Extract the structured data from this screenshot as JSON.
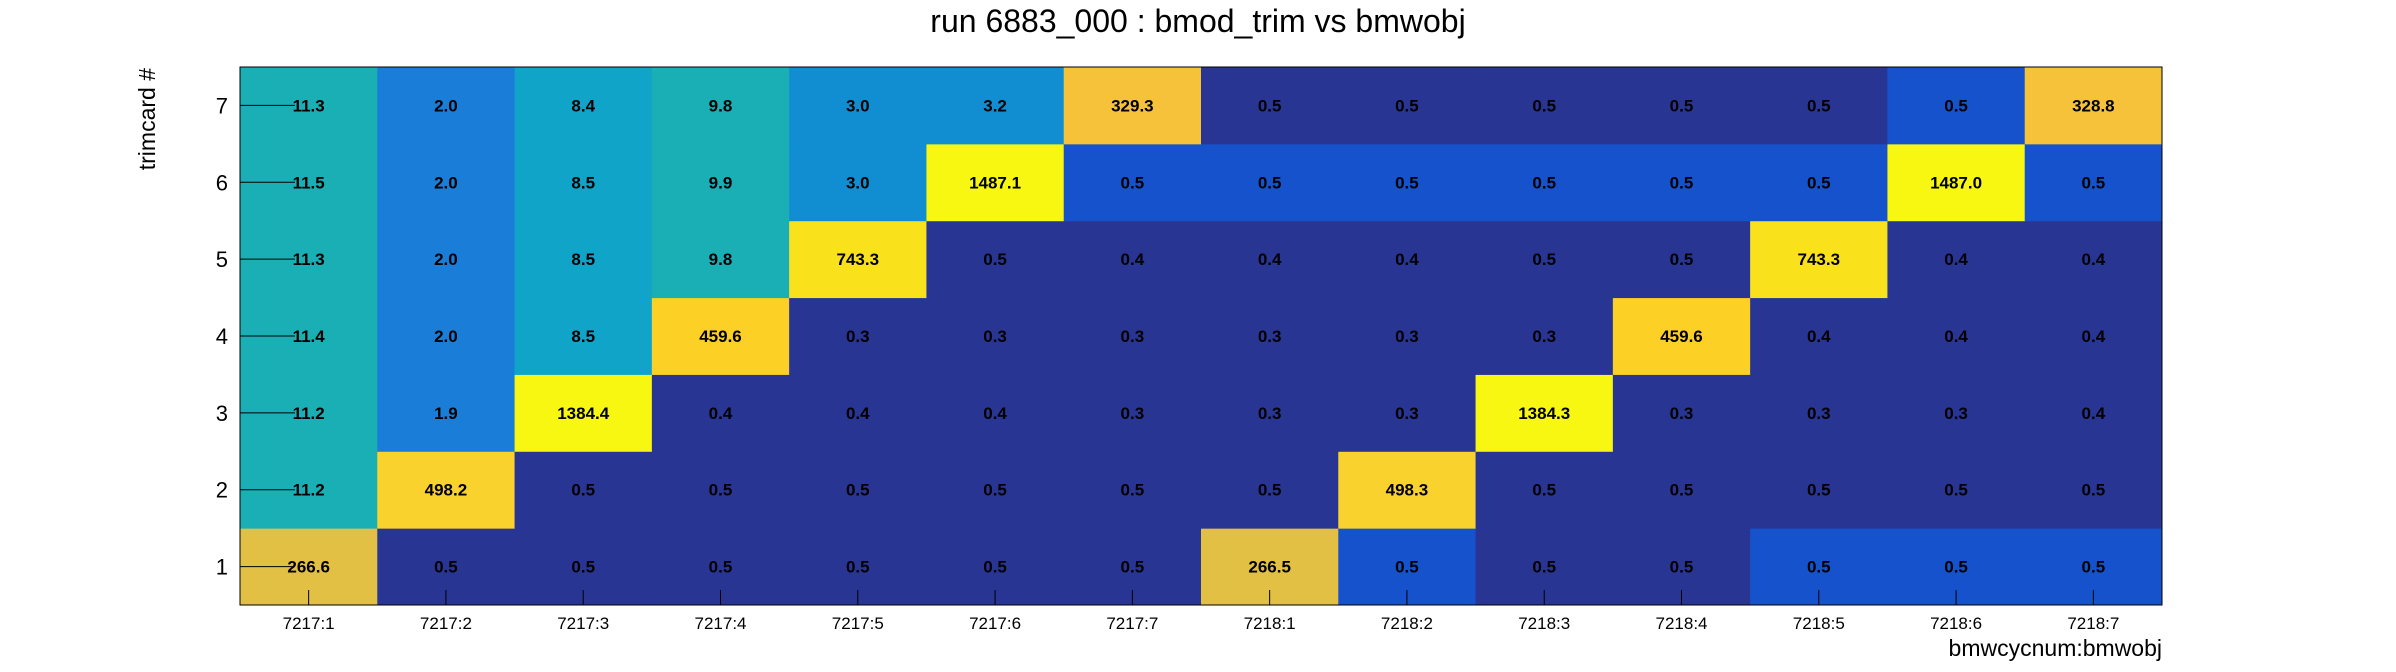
{
  "chart_data": {
    "type": "heatmap",
    "title": "run 6883_000 : bmod_trim vs bmwobj",
    "xlabel": "bmwcycnum:bmwobj",
    "ylabel": "trimcard #",
    "x_categories": [
      "7217:1",
      "7217:2",
      "7217:3",
      "7217:4",
      "7217:5",
      "7217:6",
      "7217:7",
      "7218:1",
      "7218:2",
      "7218:3",
      "7218:4",
      "7218:5",
      "7218:6",
      "7218:7"
    ],
    "y_categories": [
      "1",
      "2",
      "3",
      "4",
      "5",
      "6",
      "7"
    ],
    "values": [
      [
        266.6,
        0.5,
        0.5,
        0.5,
        0.5,
        0.5,
        0.5,
        266.5,
        0.5,
        0.5,
        0.5,
        0.5,
        0.5,
        0.5
      ],
      [
        11.2,
        498.2,
        0.5,
        0.5,
        0.5,
        0.5,
        0.5,
        0.5,
        498.3,
        0.5,
        0.5,
        0.5,
        0.5,
        0.5
      ],
      [
        11.2,
        1.9,
        1384.4,
        0.4,
        0.4,
        0.4,
        0.3,
        0.3,
        0.3,
        1384.3,
        0.3,
        0.3,
        0.3,
        0.4
      ],
      [
        11.4,
        2.0,
        8.5,
        459.6,
        0.3,
        0.3,
        0.3,
        0.3,
        0.3,
        0.3,
        459.6,
        0.4,
        0.4,
        0.4
      ],
      [
        11.3,
        2.0,
        8.5,
        9.8,
        743.3,
        0.5,
        0.4,
        0.4,
        0.4,
        0.5,
        0.5,
        743.3,
        0.4,
        0.4
      ],
      [
        11.5,
        2.0,
        8.5,
        9.9,
        3.0,
        1487.1,
        0.5,
        0.5,
        0.5,
        0.5,
        0.5,
        0.5,
        1487.0,
        0.5
      ],
      [
        11.3,
        2.0,
        8.4,
        9.8,
        3.0,
        3.2,
        329.3,
        0.5,
        0.5,
        0.5,
        0.5,
        0.5,
        0.5,
        328.8
      ]
    ],
    "cell_colors": [
      [
        "#e2c044",
        "#283593",
        "#283593",
        "#283593",
        "#283593",
        "#283593",
        "#283593",
        "#e2c044",
        "#1652cc",
        "#283593",
        "#283593",
        "#1652cc",
        "#1652cc",
        "#1652cc"
      ],
      [
        "#1aafb5",
        "#fad22d",
        "#283593",
        "#283593",
        "#283593",
        "#283593",
        "#283593",
        "#283593",
        "#fad22d",
        "#283593",
        "#283593",
        "#283593",
        "#283593",
        "#283593"
      ],
      [
        "#1aafb5",
        "#1a7dd8",
        "#f7f712",
        "#283593",
        "#283593",
        "#283593",
        "#283593",
        "#283593",
        "#283593",
        "#f7f712",
        "#283593",
        "#283593",
        "#283593",
        "#283593"
      ],
      [
        "#1aafb5",
        "#1a7dd8",
        "#11a4c9",
        "#fdd026",
        "#283593",
        "#283593",
        "#283593",
        "#283593",
        "#283593",
        "#283593",
        "#fdd026",
        "#283593",
        "#283593",
        "#283593"
      ],
      [
        "#1aafb5",
        "#1a7dd8",
        "#11a4c9",
        "#1aafb5",
        "#f9e21c",
        "#283593",
        "#283593",
        "#283593",
        "#283593",
        "#283593",
        "#283593",
        "#f9e21c",
        "#283593",
        "#283593"
      ],
      [
        "#1aafb5",
        "#1a7dd8",
        "#11a4c9",
        "#1aafb5",
        "#118ed2",
        "#f7f712",
        "#1652cc",
        "#1652cc",
        "#1652cc",
        "#1652cc",
        "#1652cc",
        "#1652cc",
        "#f7f712",
        "#1652cc"
      ],
      [
        "#1aafb5",
        "#1a7dd8",
        "#11a4c9",
        "#1aafb5",
        "#118ed2",
        "#118ed2",
        "#f5c23a",
        "#283593",
        "#283593",
        "#283593",
        "#283593",
        "#283593",
        "#1652cc",
        "#f5c23a"
      ]
    ],
    "grid": false,
    "legend": "none"
  }
}
